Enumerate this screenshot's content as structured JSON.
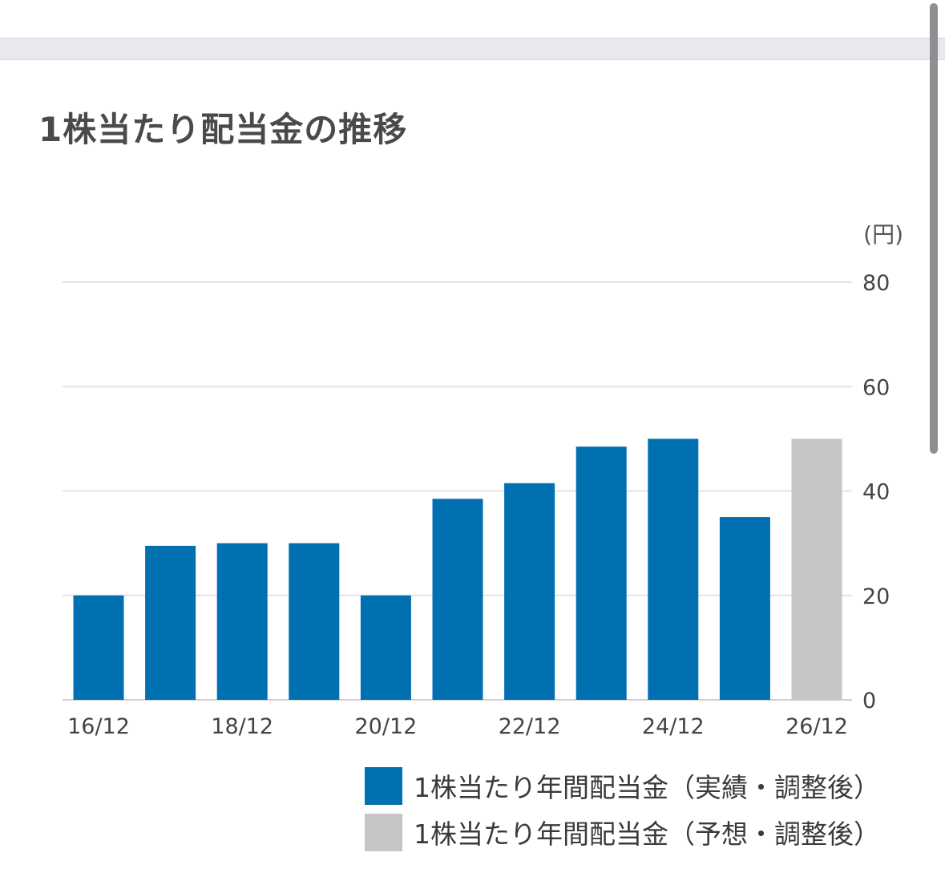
{
  "title": "1株当たり配当金の推移",
  "chart_data": {
    "type": "bar",
    "unit_label": "(円)",
    "categories": [
      "16/12",
      "17/12",
      "18/12",
      "19/12",
      "20/12",
      "21/12",
      "22/12",
      "23/12",
      "24/12",
      "25/12",
      "26/12"
    ],
    "x_tick_labels": [
      "16/12",
      "",
      "18/12",
      "",
      "20/12",
      "",
      "22/12",
      "",
      "24/12",
      "",
      "26/12"
    ],
    "series": [
      {
        "name": "1株当たり年間配当金（実績・調整後）",
        "color": "#0070b0",
        "values": [
          20,
          29.5,
          30,
          30,
          20,
          38.5,
          41.5,
          48.5,
          50,
          35,
          null
        ]
      },
      {
        "name": "1株当たり年間配当金（予想・調整後）",
        "color": "#c6c6c6",
        "values": [
          null,
          null,
          null,
          null,
          null,
          null,
          null,
          null,
          null,
          null,
          50
        ]
      }
    ],
    "y_ticks": [
      "0",
      "20",
      "40",
      "60",
      "80"
    ],
    "ylim": [
      0,
      80
    ],
    "grid": true,
    "y_axis_position": "right",
    "legend_position": "bottom-right"
  }
}
